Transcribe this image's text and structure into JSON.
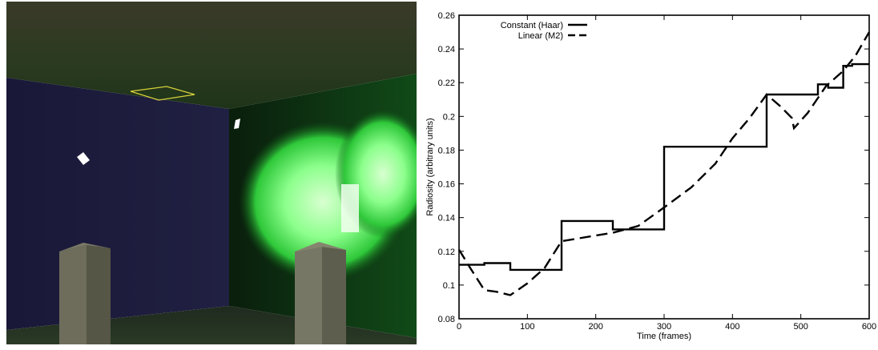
{
  "left_panel": {
    "image_kind": "rendered-scene",
    "wall_colors": [
      "#1c1a3a",
      "#0c2a10"
    ],
    "glow_color": "#8cff8c"
  },
  "chart_data": {
    "type": "line",
    "title": "",
    "xlabel": "Time (frames)",
    "ylabel": "Radiosity (arbitrary units)",
    "xlim": [
      0,
      600
    ],
    "ylim": [
      0.08,
      0.26
    ],
    "xticks": [
      "0",
      "100",
      "200",
      "300",
      "400",
      "500",
      "600"
    ],
    "xtick_values": [
      0,
      100,
      200,
      300,
      400,
      500,
      600
    ],
    "yticks": [
      "0.08",
      "0.1",
      "0.12",
      "0.14",
      "0.16",
      "0.18",
      "0.2",
      "0.22",
      "0.24",
      "0.26"
    ],
    "ytick_values": [
      0.08,
      0.1,
      0.12,
      0.14,
      0.16,
      0.18,
      0.2,
      0.22,
      0.24,
      0.26
    ],
    "grid": false,
    "legend_position": "top-left",
    "series": [
      {
        "name": "Constant (Haar)",
        "style": "solid",
        "color": "#000000",
        "points": [
          [
            0,
            0.112
          ],
          [
            37,
            0.112
          ],
          [
            37,
            0.113
          ],
          [
            75,
            0.113
          ],
          [
            75,
            0.109
          ],
          [
            150,
            0.109
          ],
          [
            150,
            0.138
          ],
          [
            193,
            0.138
          ],
          [
            193,
            0.138
          ],
          [
            225,
            0.138
          ],
          [
            225,
            0.133
          ],
          [
            300,
            0.133
          ],
          [
            300,
            0.182
          ],
          [
            375,
            0.182
          ],
          [
            375,
            0.182
          ],
          [
            450,
            0.182
          ],
          [
            450,
            0.213
          ],
          [
            470,
            0.213
          ],
          [
            470,
            0.213
          ],
          [
            525,
            0.213
          ],
          [
            525,
            0.219
          ],
          [
            540,
            0.219
          ],
          [
            540,
            0.217
          ],
          [
            562,
            0.217
          ],
          [
            562,
            0.23
          ],
          [
            575,
            0.23
          ],
          [
            575,
            0.231
          ],
          [
            600,
            0.231
          ]
        ]
      },
      {
        "name": "Linear (M2)",
        "style": "dashed",
        "color": "#000000",
        "points": [
          [
            0,
            0.121
          ],
          [
            15,
            0.111
          ],
          [
            37,
            0.097
          ],
          [
            55,
            0.096
          ],
          [
            75,
            0.094
          ],
          [
            100,
            0.101
          ],
          [
            125,
            0.11
          ],
          [
            150,
            0.126
          ],
          [
            225,
            0.131
          ],
          [
            262,
            0.135
          ],
          [
            300,
            0.146
          ],
          [
            340,
            0.158
          ],
          [
            375,
            0.172
          ],
          [
            400,
            0.187
          ],
          [
            425,
            0.199
          ],
          [
            450,
            0.213
          ],
          [
            470,
            0.206
          ],
          [
            487,
            0.199
          ],
          [
            490,
            0.193
          ],
          [
            510,
            0.202
          ],
          [
            537,
            0.218
          ],
          [
            562,
            0.227
          ],
          [
            580,
            0.236
          ],
          [
            600,
            0.25
          ]
        ]
      }
    ]
  }
}
